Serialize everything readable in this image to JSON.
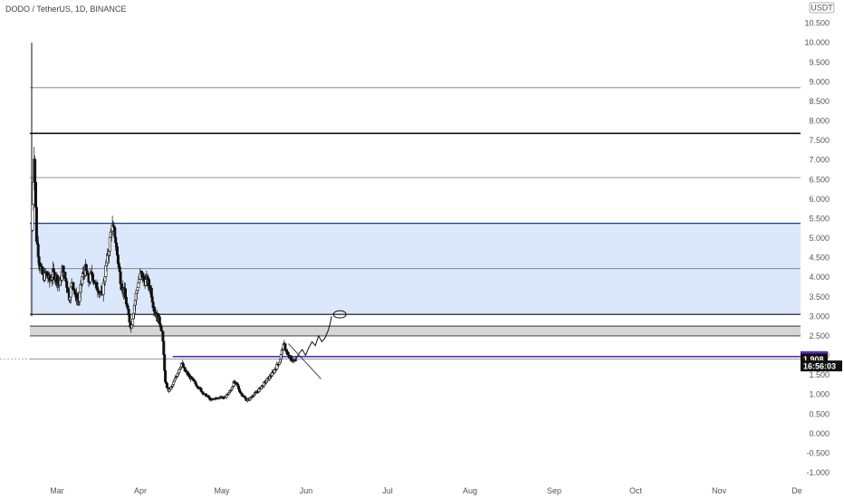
{
  "header": {
    "title": "DODO / TetherUS, 1D, BINANCE",
    "currency_label": "USDT"
  },
  "chart_data": {
    "type": "candlestick",
    "title": "DODO / TetherUS, 1D, BINANCE",
    "ylim": [
      -1.0,
      11.0
    ],
    "y_ticks": [
      "-1.000",
      "-0.500",
      "0.000",
      "0.500",
      "1.000",
      "1.500",
      "2.000",
      "2.500",
      "3.000",
      "3.500",
      "4.000",
      "4.500",
      "5.000",
      "5.500",
      "6.000",
      "6.500",
      "7.000",
      "7.500",
      "8.000",
      "8.500",
      "9.000",
      "9.500",
      "10.000",
      "10.500"
    ],
    "x_ticks": [
      "Mar",
      "Apr",
      "May",
      "Jun",
      "Jul",
      "Aug",
      "Sep",
      "Oct",
      "Nov",
      "De"
    ],
    "price_badges": [
      {
        "label": "1.969",
        "value": 1.969,
        "color": "#5b2bc8"
      },
      {
        "label": "1.908",
        "value": 1.908,
        "color": "#111111"
      },
      {
        "label": "16:56:03",
        "value": 1.73,
        "color": "#111111"
      }
    ],
    "horizontal_levels": [
      {
        "value": 8.85,
        "color": "#777777"
      },
      {
        "value": 7.68,
        "color": "#111111"
      },
      {
        "value": 6.55,
        "color": "#777777"
      },
      {
        "value": 4.22,
        "color": "#777777"
      },
      {
        "value": 1.908,
        "color": "#777777"
      }
    ],
    "zones": [
      {
        "from": 3.05,
        "to": 5.38,
        "fill": "#dbe8fb",
        "top_color": "#1d3a8a",
        "bottom_color": "#111111"
      },
      {
        "from": 2.5,
        "to": 2.75,
        "fill": "#d6d6d6",
        "top_color": "#555555",
        "bottom_color": "#555555"
      }
    ],
    "purple_level": 1.969,
    "candle_points": [
      [
        0,
        5.2
      ],
      [
        3,
        7.2
      ],
      [
        6,
        5.0
      ],
      [
        10,
        4.3
      ],
      [
        14,
        4.0
      ],
      [
        18,
        4.1
      ],
      [
        22,
        3.9
      ],
      [
        26,
        4.1
      ],
      [
        30,
        4.0
      ],
      [
        34,
        3.8
      ],
      [
        38,
        4.2
      ],
      [
        42,
        3.9
      ],
      [
        46,
        3.5
      ],
      [
        50,
        3.9
      ],
      [
        54,
        3.5
      ],
      [
        58,
        3.4
      ],
      [
        62,
        4.0
      ],
      [
        66,
        4.2
      ],
      [
        70,
        3.9
      ],
      [
        74,
        4.1
      ],
      [
        78,
        3.8
      ],
      [
        82,
        3.7
      ],
      [
        86,
        3.5
      ],
      [
        90,
        4.1
      ],
      [
        94,
        4.6
      ],
      [
        98,
        5.3
      ],
      [
        102,
        5.1
      ],
      [
        106,
        4.4
      ],
      [
        110,
        3.8
      ],
      [
        114,
        3.6
      ],
      [
        118,
        3.1
      ],
      [
        122,
        2.7
      ],
      [
        126,
        3.3
      ],
      [
        130,
        3.8
      ],
      [
        134,
        4.1
      ],
      [
        138,
        3.9
      ],
      [
        142,
        3.9
      ],
      [
        146,
        3.7
      ],
      [
        150,
        3.2
      ],
      [
        154,
        3.0
      ],
      [
        158,
        2.8
      ],
      [
        160,
        2.6
      ],
      [
        162,
        2.0
      ],
      [
        164,
        1.3
      ],
      [
        168,
        1.1
      ],
      [
        172,
        1.2
      ],
      [
        176,
        1.4
      ],
      [
        180,
        1.6
      ],
      [
        184,
        1.8
      ],
      [
        188,
        1.6
      ],
      [
        192,
        1.5
      ],
      [
        196,
        1.4
      ],
      [
        200,
        1.3
      ],
      [
        204,
        1.2
      ],
      [
        208,
        1.1
      ],
      [
        212,
        1.0
      ],
      [
        216,
        0.95
      ],
      [
        220,
        0.85
      ],
      [
        224,
        0.9
      ],
      [
        228,
        0.9
      ],
      [
        232,
        0.95
      ],
      [
        236,
        0.9
      ],
      [
        240,
        1.0
      ],
      [
        244,
        1.1
      ],
      [
        248,
        1.3
      ],
      [
        252,
        1.25
      ],
      [
        256,
        1.05
      ],
      [
        260,
        0.95
      ],
      [
        264,
        0.85
      ],
      [
        268,
        0.9
      ],
      [
        272,
        1.0
      ],
      [
        276,
        1.05
      ],
      [
        280,
        1.15
      ],
      [
        284,
        1.25
      ],
      [
        288,
        1.35
      ],
      [
        292,
        1.45
      ],
      [
        296,
        1.55
      ],
      [
        300,
        1.7
      ],
      [
        304,
        1.85
      ],
      [
        306,
        2.0
      ],
      [
        308,
        2.2
      ],
      [
        310,
        2.25
      ],
      [
        312,
        2.15
      ],
      [
        314,
        2.0
      ],
      [
        318,
        1.9
      ],
      [
        322,
        1.85
      ],
      [
        324,
        1.9
      ]
    ],
    "projection_points": [
      [
        324,
        1.9
      ],
      [
        328,
        2.05
      ],
      [
        332,
        2.15
      ],
      [
        336,
        2.0
      ],
      [
        340,
        2.2
      ],
      [
        344,
        2.35
      ],
      [
        348,
        2.25
      ],
      [
        352,
        2.5
      ],
      [
        356,
        2.35
      ],
      [
        360,
        2.45
      ],
      [
        364,
        2.65
      ],
      [
        366,
        2.8
      ],
      [
        368,
        3.0
      ]
    ],
    "trendline": [
      [
        315,
        2.3
      ],
      [
        355,
        1.4
      ]
    ],
    "target_ellipse": {
      "day": 378,
      "value": 3.05
    }
  }
}
